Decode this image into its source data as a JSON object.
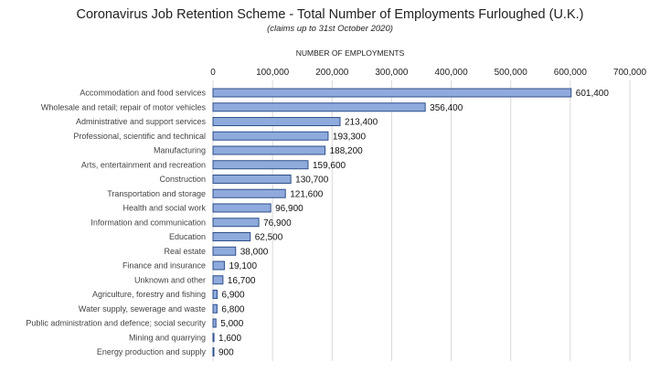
{
  "chart_data": {
    "type": "bar",
    "orientation": "horizontal",
    "title": "Coronavirus Job Retention Scheme - Total Number of Employments Furloughed (U.K.)",
    "subtitle": "(claims up to 31st October 2020)",
    "xlabel": "NUMBER OF EMPLOYMENTS",
    "ylabel": "",
    "xlim": [
      0,
      700000
    ],
    "x_ticks": [
      0,
      100000,
      200000,
      300000,
      400000,
      500000,
      600000,
      700000
    ],
    "x_tick_labels": [
      "0",
      "100,000",
      "200,000",
      "300,000",
      "400,000",
      "500,000",
      "600,000",
      "700,000"
    ],
    "axis_position": "top",
    "grid": true,
    "legend": "none",
    "bar_color": "#8FAADC",
    "bar_edge_color": "#2F4F8A",
    "categories": [
      "Accommodation and food services",
      "Wholesale and retail; repair of motor vehicles",
      "Administrative and support services",
      "Professional, scientific and technical",
      "Manufacturing",
      "Arts, entertainment and recreation",
      "Construction",
      "Transportation and storage",
      "Health and social work",
      "Information and communication",
      "Education",
      "Real estate",
      "Finance and insurance",
      "Unknown and other",
      "Agriculture, forestry and fishing",
      "Water supply, sewerage and waste",
      "Public administration and defence; social security",
      "Mining and quarrying",
      "Energy production and supply"
    ],
    "values": [
      601400,
      356400,
      213400,
      193300,
      188200,
      159600,
      130700,
      121600,
      96900,
      76900,
      62500,
      38000,
      19100,
      16700,
      6900,
      6800,
      5000,
      1600,
      900
    ],
    "value_labels": [
      "601,400",
      "356,400",
      "213,400",
      "193,300",
      "188,200",
      "159,600",
      "130,700",
      "121,600",
      "96,900",
      "76,900",
      "62,500",
      "38,000",
      "19,100",
      "16,700",
      "6,900",
      "6,800",
      "5,000",
      "1,600",
      "900"
    ]
  }
}
